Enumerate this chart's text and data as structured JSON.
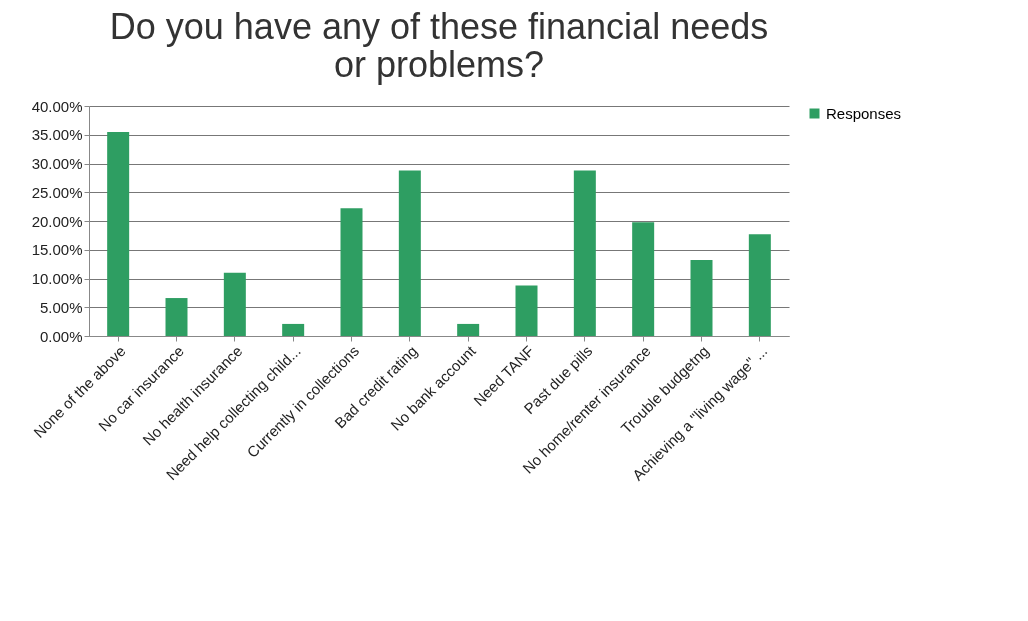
{
  "chart_data": {
    "type": "bar",
    "title": [
      "Do you have any of these financial needs",
      "or problems?"
    ],
    "categories": [
      "None of the above",
      "No car insurance",
      "No health insurance",
      "Need help collecting child...",
      "Currently in collections",
      "Bad credit rating",
      "No bank account",
      "Need TANF",
      "Past due pills",
      "No home/renter insurance",
      "Trouble budgetng",
      "Achieving a \"living wage\" ..."
    ],
    "series": [
      {
        "name": "Responses",
        "color": "#2e9e62",
        "values": [
          35.5,
          6.6,
          11.0,
          2.1,
          22.2,
          28.8,
          2.1,
          8.8,
          28.8,
          19.8,
          13.2,
          17.7
        ]
      }
    ],
    "ylim": [
      0,
      40
    ],
    "yticks": [
      {
        "value": 0,
        "label": "0.00%"
      },
      {
        "value": 5,
        "label": "5.00%"
      },
      {
        "value": 10,
        "label": "10.00%"
      },
      {
        "value": 15,
        "label": "15.00%"
      },
      {
        "value": 20,
        "label": "20.00%"
      },
      {
        "value": 25,
        "label": "25.00%"
      },
      {
        "value": 30,
        "label": "30.00%"
      },
      {
        "value": 35,
        "label": "35.00%"
      },
      {
        "value": 40,
        "label": "40.00%"
      }
    ],
    "grid": "y",
    "legend": "right"
  }
}
